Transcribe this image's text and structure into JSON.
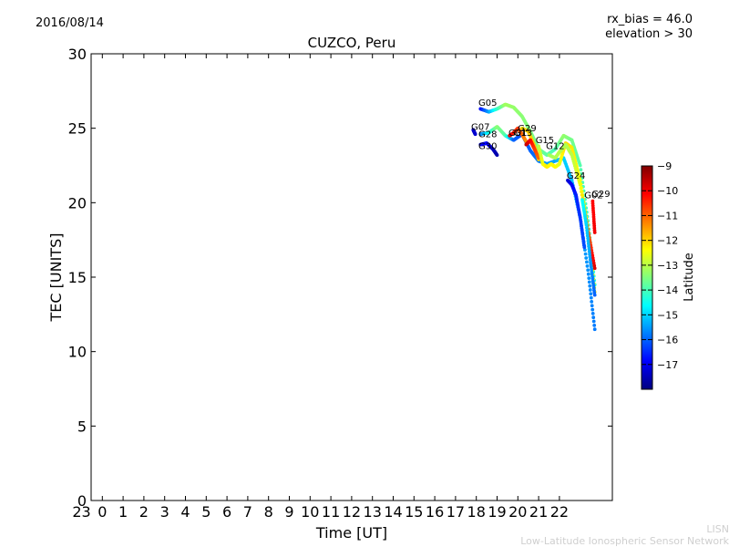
{
  "header": {
    "date": "2016/08/14",
    "rx_bias": "rx_bias = 46.0",
    "elevation": "elevation > 30"
  },
  "footer": {
    "credit_short": "LISN",
    "credit_full": "Low-Latitude Ionospheric Sensor Network"
  },
  "chart_data": {
    "type": "scatter",
    "title": "CUZCO, Peru",
    "xlabel": "Time [UT]",
    "ylabel": "TEC [UNITS]",
    "ylim": [
      0,
      30
    ],
    "yticks": [
      0,
      5,
      10,
      15,
      20,
      25,
      30
    ],
    "xlim": [
      -1,
      24
    ],
    "xticks": [
      {
        "value": -1,
        "label": "23"
      },
      {
        "value": 0,
        "label": "0"
      },
      {
        "value": 1,
        "label": "1"
      },
      {
        "value": 2,
        "label": "2"
      },
      {
        "value": 3,
        "label": "3"
      },
      {
        "value": 4,
        "label": "4"
      },
      {
        "value": 5,
        "label": "5"
      },
      {
        "value": 6,
        "label": "6"
      },
      {
        "value": 7,
        "label": "7"
      },
      {
        "value": 8,
        "label": "8"
      },
      {
        "value": 9,
        "label": "9"
      },
      {
        "value": 10,
        "label": "10"
      },
      {
        "value": 11,
        "label": "11"
      },
      {
        "value": 12,
        "label": "12"
      },
      {
        "value": 13,
        "label": "13"
      },
      {
        "value": 14,
        "label": "14"
      },
      {
        "value": 15,
        "label": "15"
      },
      {
        "value": 16,
        "label": "16"
      },
      {
        "value": 17,
        "label": "17"
      },
      {
        "value": 18,
        "label": "18"
      },
      {
        "value": 19,
        "label": "19"
      },
      {
        "value": 20,
        "label": "20"
      },
      {
        "value": 21,
        "label": "21"
      },
      {
        "value": 22,
        "label": "22"
      }
    ],
    "grid": false,
    "colorbar": {
      "label": "Latitude",
      "min": -18,
      "max": -9,
      "ticks": [
        -9,
        -10,
        -11,
        -12,
        -13,
        -14,
        -15,
        -16,
        -17
      ],
      "colormap": [
        "#00007f",
        "#0000ff",
        "#007fff",
        "#00ffff",
        "#7fff7f",
        "#ffff00",
        "#ff7f00",
        "#ff0000",
        "#7f0000"
      ]
    },
    "series": [
      {
        "name": "G05",
        "x": [
          18.2,
          18.6,
          19.0,
          19.4,
          19.8,
          20.2,
          20.6,
          21.0,
          21.4,
          21.8,
          22.2,
          22.6,
          23.0,
          23.4,
          23.7
        ],
        "y": [
          26.3,
          26.1,
          26.3,
          26.6,
          26.4,
          25.8,
          24.8,
          23.6,
          23.2,
          23.6,
          24.5,
          24.2,
          22.5,
          18.5,
          14.5
        ],
        "lat": [
          -16.8,
          -15.5,
          -14.2,
          -13.2,
          -13.3,
          -13.4,
          -13.5,
          -13.6,
          -13.8,
          -14.0,
          -13.3,
          -13.6,
          -13.9,
          -14.2,
          -14.5
        ]
      },
      {
        "name": "G07",
        "x": [
          17.85,
          17.95
        ],
        "y": [
          24.9,
          24.6
        ],
        "lat": [
          -17.3,
          -17.3
        ]
      },
      {
        "name": "G28",
        "x": [
          18.2,
          18.6,
          19.0,
          19.4,
          19.8,
          20.2,
          20.6,
          21.0,
          21.4,
          21.8,
          22.2,
          22.6,
          23.0,
          23.4,
          23.7
        ],
        "y": [
          24.6,
          24.7,
          25.1,
          24.5,
          24.2,
          24.6,
          23.5,
          22.8,
          22.6,
          22.8,
          23.0,
          21.5,
          19.0,
          15.2,
          11.5
        ],
        "lat": [
          -15.8,
          -14.6,
          -13.4,
          -13.9,
          -16.0,
          -16.2,
          -16.0,
          -15.8,
          -15.5,
          -15.4,
          -15.0,
          -15.2,
          -15.4,
          -15.6,
          -15.8
        ]
      },
      {
        "name": "G30",
        "x": [
          18.2,
          18.5,
          18.8,
          19.0
        ],
        "y": [
          23.9,
          24.0,
          23.6,
          23.2
        ],
        "lat": [
          -17.0,
          -16.8,
          -17.4,
          -17.6
        ]
      },
      {
        "name": "G13",
        "x": [
          19.6,
          19.8,
          20.0,
          20.2,
          20.4
        ],
        "y": [
          24.5,
          24.7,
          25.0,
          24.6,
          24.1
        ],
        "lat": [
          -9.8,
          -10.3,
          -10.6,
          -11.0,
          -11.4
        ]
      },
      {
        "name": "G29",
        "x": [
          20.2,
          20.5,
          20.8,
          21.0
        ],
        "y": [
          25.0,
          24.8,
          23.8,
          22.9
        ],
        "lat": [
          -12.2,
          -12.0,
          -11.9,
          -12.0
        ]
      },
      {
        "name": "G01",
        "x": [
          20.4,
          20.6,
          20.8,
          21.0
        ],
        "y": [
          23.9,
          24.2,
          23.6,
          23.0
        ],
        "lat": [
          -9.6,
          -10.0,
          -10.6,
          -11.0
        ]
      },
      {
        "name": "G15",
        "x": [
          21.0,
          21.2,
          21.4,
          21.6,
          21.8,
          22.0,
          22.3,
          22.6,
          23.0,
          23.4,
          23.7
        ],
        "y": [
          23.8,
          22.6,
          22.4,
          22.6,
          22.4,
          22.6,
          24.0,
          23.7,
          21.5,
          18.0,
          14.0
        ],
        "lat": [
          -13.0,
          -12.5,
          -12.2,
          -12.4,
          -12.3,
          -12.6,
          -12.0,
          -12.2,
          -12.4,
          -12.5,
          -12.3
        ]
      },
      {
        "name": "G12",
        "x": [
          21.5,
          21.8,
          22.0,
          22.3,
          22.6,
          23.0,
          23.4,
          23.7
        ],
        "y": [
          23.2,
          23.0,
          23.4,
          23.9,
          23.2,
          21.2,
          18.0,
          15.6
        ],
        "lat": [
          -13.2,
          -13.1,
          -13.0,
          -13.1,
          -13.0,
          -12.5,
          -11.0,
          -9.8
        ]
      },
      {
        "name": "G24",
        "x": [
          22.4,
          22.6,
          22.8,
          23.0,
          23.2
        ],
        "y": [
          21.5,
          21.2,
          20.5,
          19.0,
          17.0
        ],
        "lat": [
          -17.3,
          -17.0,
          -16.6,
          -16.4,
          -16.2
        ]
      },
      {
        "name": "G02",
        "x": [
          23.1,
          23.3,
          23.5,
          23.7
        ],
        "y": [
          20.2,
          18.5,
          16.0,
          13.8
        ],
        "lat": [
          -14.5,
          -15.0,
          -15.5,
          -16.0
        ]
      },
      {
        "name": "G29",
        "x": [
          23.6,
          23.7
        ],
        "y": [
          20.1,
          18.0
        ],
        "lat": [
          -10.2,
          -10.0
        ]
      }
    ],
    "annotations": [
      {
        "text": "G05",
        "x": 18.1,
        "y": 26.5
      },
      {
        "text": "G07",
        "x": 17.75,
        "y": 24.9
      },
      {
        "text": "G28",
        "x": 18.1,
        "y": 24.4
      },
      {
        "text": "G30",
        "x": 18.1,
        "y": 23.6
      },
      {
        "text": "G01",
        "x": 19.55,
        "y": 24.5
      },
      {
        "text": "G13",
        "x": 19.8,
        "y": 24.5
      },
      {
        "text": "G29",
        "x": 20.0,
        "y": 24.8
      },
      {
        "text": "G15",
        "x": 20.85,
        "y": 24.0
      },
      {
        "text": "G12",
        "x": 21.35,
        "y": 23.6
      },
      {
        "text": "G24",
        "x": 22.35,
        "y": 21.6
      },
      {
        "text": "G02",
        "x": 23.2,
        "y": 20.3
      },
      {
        "text": "G29",
        "x": 23.55,
        "y": 20.4
      }
    ]
  }
}
